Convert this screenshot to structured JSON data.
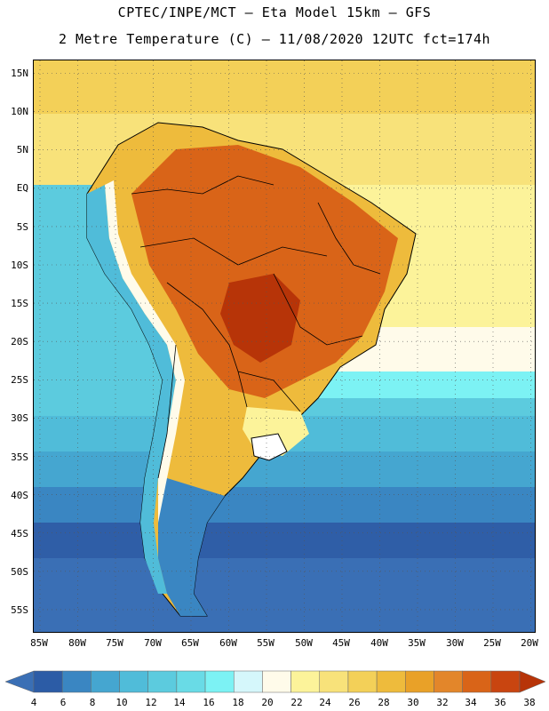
{
  "header": {
    "title_line1": "CPTEC/INPE/MCT –  Eta Model 15km – GFS",
    "title_line2": "2 Metre Temperature (C) – 11/08/2020 12UTC fct=174h"
  },
  "map": {
    "latitude_labels": [
      "15N",
      "10N",
      "5N",
      "EQ",
      "5S",
      "10S",
      "15S",
      "20S",
      "25S",
      "30S",
      "35S",
      "40S",
      "45S",
      "50S",
      "55S"
    ],
    "longitude_labels": [
      "85W",
      "80W",
      "75W",
      "70W",
      "65W",
      "60W",
      "55W",
      "50W",
      "45W",
      "40W",
      "35W",
      "30W",
      "25W",
      "20W"
    ]
  },
  "legend": {
    "values": [
      "4",
      "6",
      "8",
      "10",
      "12",
      "14",
      "16",
      "18",
      "20",
      "22",
      "24",
      "26",
      "28",
      "30",
      "32",
      "34",
      "36",
      "38"
    ],
    "colors": [
      "#3a6fb5",
      "#2c5ca6",
      "#3a86c2",
      "#45a6d0",
      "#50bcd9",
      "#5ccbde",
      "#69dbe6",
      "#7cf2f4",
      "#d5f7fb",
      "#fffbea",
      "#fcf39a",
      "#f8e27a",
      "#f3d058",
      "#eebb3c",
      "#e9a128",
      "#e3862a",
      "#d96418",
      "#c94510",
      "#b73408"
    ]
  }
}
